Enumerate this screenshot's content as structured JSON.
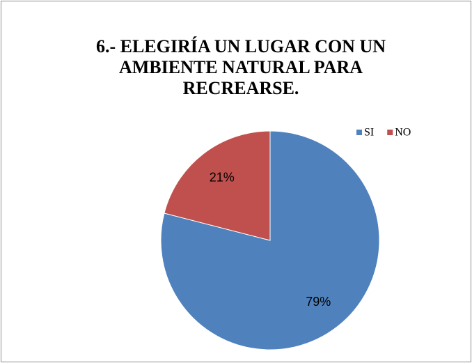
{
  "chart_data": {
    "type": "pie",
    "title": "6.- ELEGIRÍA UN LUGAR CON UN AMBIENTE NATURAL PARA RECREARSE.",
    "categories": [
      "SI",
      "NO"
    ],
    "values": [
      79,
      21
    ],
    "value_labels": [
      "79%",
      "21%"
    ],
    "colors": [
      "#4f81bd",
      "#c0504d"
    ],
    "legend": "top-right"
  }
}
